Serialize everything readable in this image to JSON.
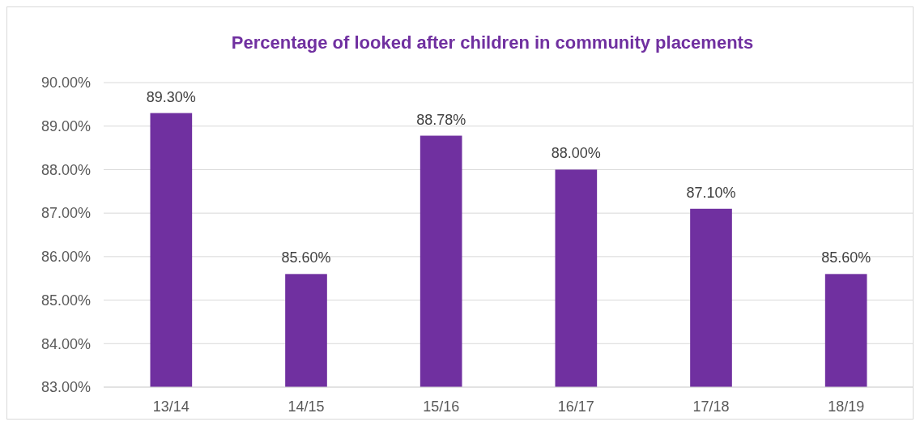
{
  "chart_data": {
    "type": "bar",
    "title": "Percentage of looked after children in community placements",
    "categories": [
      "13/14",
      "14/15",
      "15/16",
      "16/17",
      "17/18",
      "18/19"
    ],
    "values": [
      89.3,
      85.6,
      88.78,
      88.0,
      87.1,
      85.6
    ],
    "value_labels": [
      "89.30%",
      "85.60%",
      "88.78%",
      "88.00%",
      "87.10%",
      "85.60%"
    ],
    "color": "#7030a0",
    "ylim": [
      83,
      90
    ],
    "yticks": [
      {
        "value": 83,
        "label": "83.00%"
      },
      {
        "value": 84,
        "label": "84.00%"
      },
      {
        "value": 85,
        "label": "85.00%"
      },
      {
        "value": 86,
        "label": "86.00%"
      },
      {
        "value": 87,
        "label": "87.00%"
      },
      {
        "value": 88,
        "label": "88.00%"
      },
      {
        "value": 89,
        "label": "89.00%"
      },
      {
        "value": 90,
        "label": "90.00%"
      }
    ],
    "grid": "y"
  }
}
